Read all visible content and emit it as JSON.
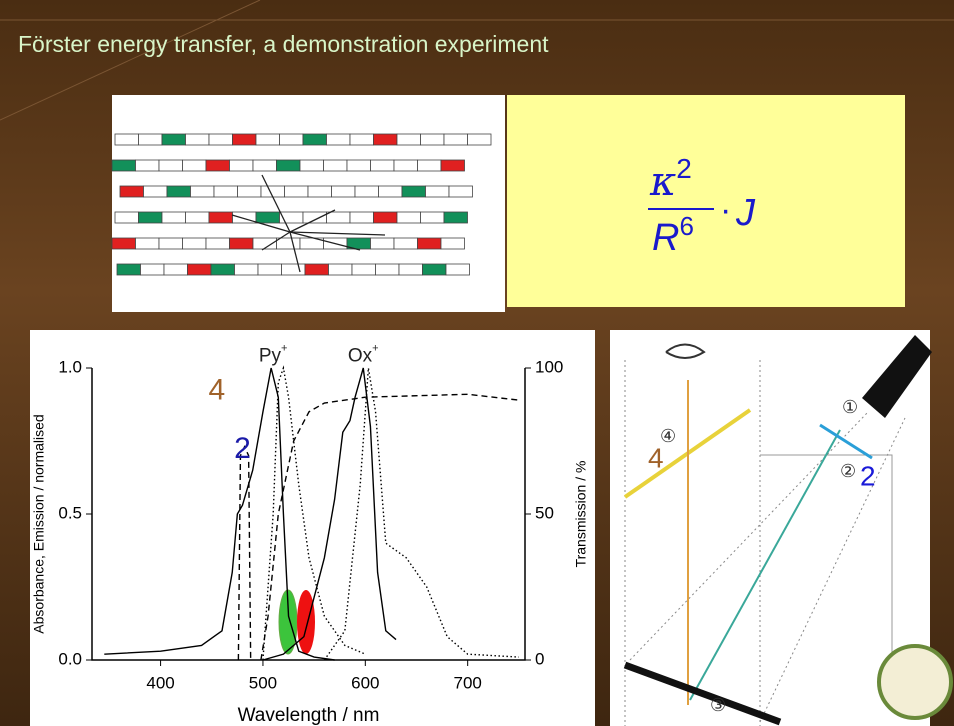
{
  "header": {
    "title": "Förster energy transfer, a demonstration experiment"
  },
  "formula": {
    "numerator": "κ",
    "numerator_exp": "2",
    "denominator": "R",
    "denominator_exp": "6",
    "operator": "·",
    "factor": "J"
  },
  "chart_data": {
    "type": "line",
    "xlabel": "Wavelength / nm",
    "ylabel": "Absorbance, Emission / normalised",
    "y2label": "Transmission / %",
    "xlim": [
      333,
      756
    ],
    "ylim": [
      0,
      1
    ],
    "y2lim": [
      0,
      100
    ],
    "xticks": [
      400,
      500,
      600,
      700
    ],
    "yticks": [
      {
        "value": 0,
        "label": "0.0"
      },
      {
        "value": 0.5,
        "label": "0.5"
      },
      {
        "value": 1,
        "label": "1.0"
      }
    ],
    "y2ticks": [
      0,
      50,
      100
    ],
    "annotations": [
      {
        "text": "Py",
        "sup": "+",
        "x": 510,
        "y": 1.04,
        "color": "#222222"
      },
      {
        "text": "Ox",
        "sup": "+",
        "x": 598,
        "y": 1.04,
        "color": "#222222"
      },
      {
        "text": "4",
        "x": 455,
        "y": 0.92,
        "color": "#a0622a"
      },
      {
        "text": "2",
        "x": 480,
        "y": 0.72,
        "color": "#1a1aa8"
      }
    ],
    "series": [
      {
        "color": "#000000",
        "dash": "solid",
        "x": [
          345,
          400,
          440,
          460,
          470,
          475,
          480,
          490,
          500,
          508,
          515,
          520,
          525,
          535,
          550,
          570
        ],
        "values": [
          0.02,
          0.03,
          0.05,
          0.1,
          0.3,
          0.5,
          0.53,
          0.65,
          0.85,
          1.0,
          0.9,
          0.5,
          0.15,
          0.03,
          0.01,
          0.0
        ]
      },
      {
        "color": "#000000",
        "dash": "solid",
        "x": [
          500,
          520,
          540,
          560,
          570,
          578,
          585,
          590,
          598,
          605,
          612,
          620,
          630
        ],
        "values": [
          0.0,
          0.02,
          0.08,
          0.35,
          0.55,
          0.78,
          0.82,
          0.9,
          1.0,
          0.8,
          0.3,
          0.1,
          0.07
        ]
      },
      {
        "color": "#000000",
        "dash": "dotted",
        "x": [
          500,
          510,
          515,
          520,
          525,
          535,
          545,
          560,
          580,
          600
        ],
        "values": [
          0.0,
          0.5,
          0.95,
          1.0,
          0.9,
          0.6,
          0.35,
          0.15,
          0.05,
          0.02
        ]
      },
      {
        "color": "#000000",
        "dash": "dotted",
        "x": [
          560,
          580,
          595,
          603,
          610,
          620,
          640,
          660,
          680,
          700,
          750
        ],
        "values": [
          0.0,
          0.1,
          0.6,
          1.0,
          0.85,
          0.4,
          0.35,
          0.25,
          0.08,
          0.02,
          0.01
        ]
      },
      {
        "color": "#000000",
        "dash": "dashed",
        "axis": "y2",
        "x": [
          498,
          505,
          515,
          530,
          545,
          560,
          600,
          700,
          750
        ],
        "values": [
          0,
          15,
          50,
          75,
          85,
          88,
          90,
          91,
          89
        ]
      },
      {
        "color": "#000000",
        "dash": "dashed",
        "axis": "y2",
        "x": [
          476,
          478,
          482,
          486,
          488
        ],
        "values": [
          0,
          70,
          73,
          70,
          0
        ]
      }
    ]
  },
  "diagram": {
    "labels": [
      "①",
      "②",
      "③",
      "④"
    ],
    "annotations": [
      "4",
      "2"
    ]
  }
}
